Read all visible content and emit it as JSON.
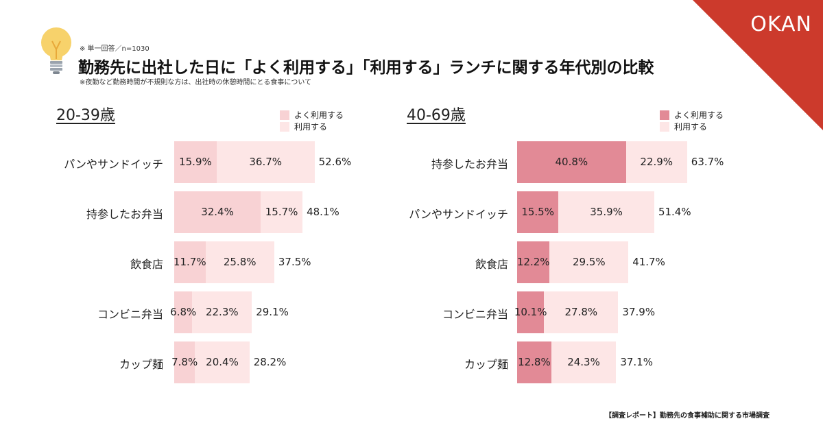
{
  "header": {
    "note": "※ 単一回答／n=1030",
    "title": "勤務先に出社した日に「よく利用する」「利用する」ランチに関する年代別の比較",
    "subnote": "※夜勤など勤務時間が不規則な方は、出社時の休憩時間にとる食事について",
    "logo": "OKAN"
  },
  "footer": "【調査レポート】勤務先の食事補助に関する市場調査",
  "colors": {
    "brand": "#cc3a2c",
    "left_often": "#f8d2d4",
    "left_use": "#fde6e6",
    "right_often": "#e28a96",
    "right_use": "#fde6e6"
  },
  "chart_data": [
    {
      "type": "bar",
      "orientation": "horizontal",
      "stacked": true,
      "title": "20-39歳",
      "legend": [
        "よく利用する",
        "利用する"
      ],
      "legend_position": "top-right",
      "categories": [
        "パンやサンドイッチ",
        "持参したお弁当",
        "飲食店",
        "コンビニ弁当",
        "カップ麺"
      ],
      "series": [
        {
          "name": "よく利用する",
          "values": [
            15.9,
            32.4,
            11.7,
            6.8,
            7.8
          ],
          "labels": [
            "15.9%",
            "32.4%",
            "11.7%",
            "6.8%",
            "7.8%"
          ]
        },
        {
          "name": "利用する",
          "values": [
            36.7,
            15.7,
            25.8,
            22.3,
            20.4
          ],
          "labels": [
            "36.7%",
            "15.7%",
            "25.8%",
            "22.3%",
            "20.4%"
          ]
        }
      ],
      "totals": [
        "52.6%",
        "48.1%",
        "37.5%",
        "29.1%",
        "28.2%"
      ]
    },
    {
      "type": "bar",
      "orientation": "horizontal",
      "stacked": true,
      "title": "40-69歳",
      "legend": [
        "よく利用する",
        "利用する"
      ],
      "legend_position": "top-right",
      "categories": [
        "持参したお弁当",
        "パンやサンドイッチ",
        "飲食店",
        "コンビニ弁当",
        "カップ麺"
      ],
      "series": [
        {
          "name": "よく利用する",
          "values": [
            40.8,
            15.5,
            12.2,
            10.1,
            12.8
          ],
          "labels": [
            "40.8%",
            "15.5%",
            "12.2%",
            "10.1%",
            "12.8%"
          ]
        },
        {
          "name": "利用する",
          "values": [
            22.9,
            35.9,
            29.5,
            27.8,
            24.3
          ],
          "labels": [
            "22.9%",
            "35.9%",
            "29.5%",
            "27.8%",
            "24.3%"
          ]
        }
      ],
      "totals": [
        "63.7%",
        "51.4%",
        "41.7%",
        "37.9%",
        "37.1%"
      ]
    }
  ]
}
